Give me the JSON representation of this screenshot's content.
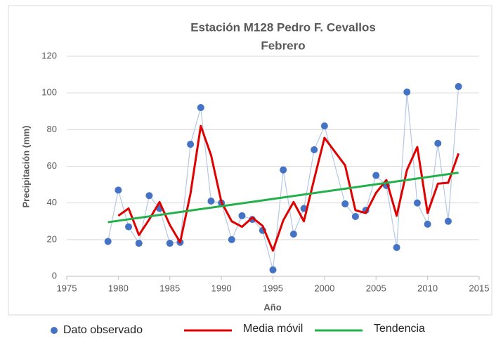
{
  "chart_data": {
    "type": "line",
    "title": "Estación M128 Pedro F. Cevallos",
    "subtitle": "Febrero",
    "xlabel": "Año",
    "ylabel": "Precipitación (mm)",
    "xlim": [
      1975,
      2015
    ],
    "xticks": [
      1975,
      1980,
      1985,
      1990,
      1995,
      2000,
      2005,
      2010,
      2015
    ],
    "ylim": [
      0,
      120
    ],
    "yticks": [
      0,
      20,
      40,
      60,
      80,
      100,
      120
    ],
    "grid": true,
    "legend": "bottom",
    "series": [
      {
        "name": "Dato observado",
        "style": "markers",
        "color": "#4472c4",
        "line_color": "#b4c7e7",
        "x": [
          1979,
          1980,
          1981,
          1982,
          1983,
          1984,
          1985,
          1986,
          1987,
          1988,
          1989,
          1990,
          1991,
          1992,
          1993,
          1994,
          1995,
          1996,
          1997,
          1998,
          1999,
          2000,
          2002,
          2003,
          2004,
          2005,
          2006,
          2007,
          2008,
          2009,
          2010,
          2011,
          2012,
          2013
        ],
        "values": [
          19,
          47,
          27,
          18,
          44,
          37,
          18,
          18.5,
          72,
          92,
          41,
          40,
          20,
          33,
          31,
          25,
          3.5,
          58,
          23,
          37,
          69,
          82,
          39.5,
          32.6,
          36,
          55,
          49.5,
          15.7,
          100.5,
          40,
          28.4,
          72.5,
          30,
          103.5
        ]
      },
      {
        "name": "Media móvil",
        "style": "line",
        "color": "#e00000",
        "x": [
          1980,
          1981,
          1982,
          1983,
          1984,
          1985,
          1986,
          1987,
          1988,
          1989,
          1990,
          1991,
          1992,
          1993,
          1994,
          1995,
          1996,
          1997,
          1998,
          1999,
          2000,
          2001,
          2002,
          2003,
          2004,
          2005,
          2006,
          2007,
          2008,
          2009,
          2010,
          2011,
          2012,
          2013
        ],
        "values": [
          33,
          37,
          22.5,
          31,
          40.5,
          28,
          18.5,
          45,
          82,
          66,
          40.5,
          30,
          27,
          32,
          27.5,
          14,
          30.5,
          40.5,
          30,
          53,
          75.5,
          68,
          60.5,
          36,
          34.5,
          45.5,
          52.5,
          33,
          58,
          70.5,
          34.5,
          50.5,
          51,
          67
        ]
      },
      {
        "name": "Tendencia",
        "style": "line",
        "color": "#22b04b",
        "x": [
          1979,
          2013
        ],
        "values": [
          29.5,
          56.5
        ]
      }
    ]
  }
}
